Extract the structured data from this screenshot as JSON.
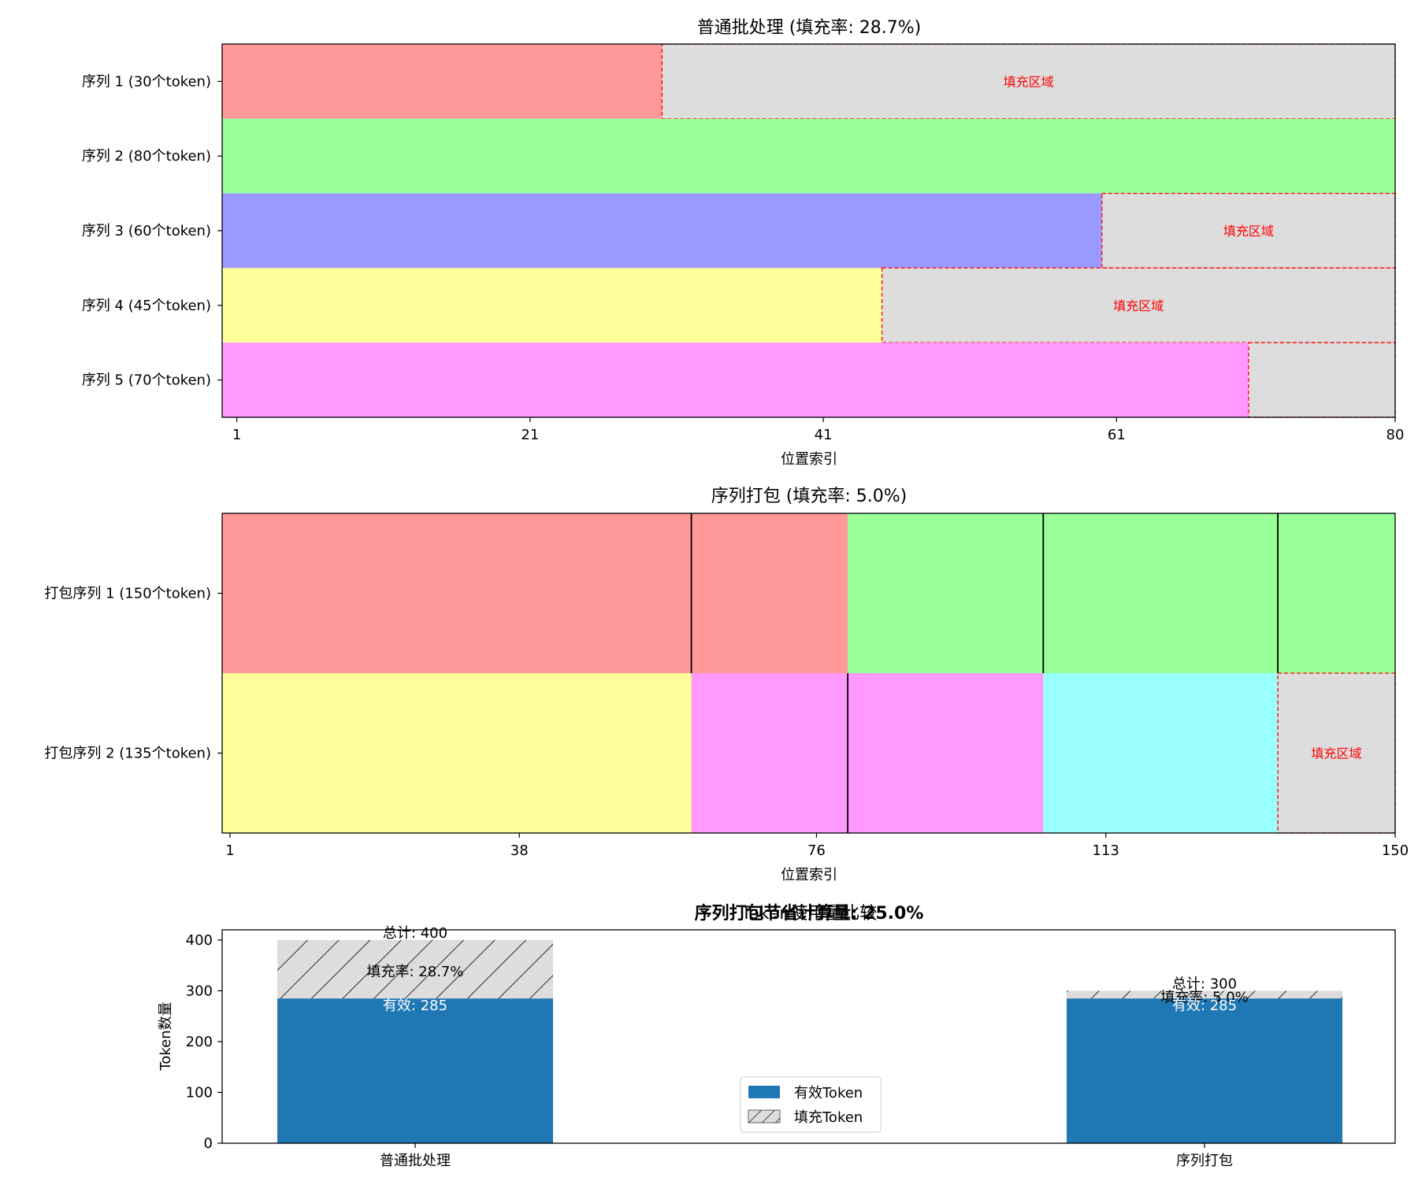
{
  "colors": {
    "seq": [
      "#ff9999",
      "#99ff99",
      "#9999ff",
      "#ffff99",
      "#ff99ff",
      "#99ffff"
    ],
    "pad_fill": "#dddddd",
    "pad_border": "#ff0000",
    "valid_bar": "#1f77b4",
    "axis": "#000000"
  },
  "chart_data": [
    {
      "type": "bar",
      "orientation": "horizontal",
      "title": "普通批处理 (填充率: 28.7%)",
      "xlabel": "位置索引",
      "ylabel": "",
      "xlim": [
        0,
        80
      ],
      "xticks": [
        "1",
        "21",
        "41",
        "61",
        "80"
      ],
      "categories": [
        "序列 1 (30个token)",
        "序列 2 (80个token)",
        "序列 3 (60个token)",
        "序列 4 (45个token)",
        "序列 5 (70个token)"
      ],
      "lengths": [
        30,
        80,
        60,
        45,
        70
      ],
      "max_length": 80,
      "padding_label": "填充区域",
      "padding_labelled_rows": [
        0,
        2,
        3
      ]
    },
    {
      "type": "bar",
      "orientation": "horizontal",
      "title": "序列打包 (填充率: 5.0%)",
      "xlabel": "位置索引",
      "ylabel": "",
      "xlim": [
        0,
        150
      ],
      "xticks": [
        "1",
        "38",
        "76",
        "113",
        "150"
      ],
      "categories": [
        "打包序列 1 (150个token)",
        "打包序列 2 (135个token)"
      ],
      "packed_rows": [
        {
          "segments": [
            {
              "seq": 1,
              "length": 60
            },
            {
              "seq": 1,
              "length": 20
            },
            {
              "seq": 2,
              "length": 25
            },
            {
              "seq": 2,
              "length": 30
            },
            {
              "seq": 2,
              "length": 15
            }
          ],
          "boundaries": [
            60,
            105,
            135
          ]
        },
        {
          "segments": [
            {
              "seq": 4,
              "length": 60
            },
            {
              "seq": 5,
              "length": 20
            },
            {
              "seq": 5,
              "length": 25
            },
            {
              "seq": 6,
              "length": 30
            }
          ],
          "boundaries": [
            80
          ],
          "padding_length": 15
        }
      ],
      "padding_label": "填充区域"
    },
    {
      "type": "bar",
      "stacked": true,
      "title": "Token使用量比较",
      "overlay_title": "序列打包节省计算量: 25.0%",
      "xlabel": "",
      "ylabel": "Token数量",
      "ylim": [
        0,
        420
      ],
      "yticks": [
        0,
        100,
        200,
        300,
        400
      ],
      "categories": [
        "普通批处理",
        "序列打包"
      ],
      "series": [
        {
          "name": "有效Token",
          "values": [
            285,
            285
          ]
        },
        {
          "name": "填充Token",
          "values": [
            115,
            15
          ]
        }
      ],
      "annotations": [
        {
          "total": "总计: 400",
          "rate": "填充率: 28.7%",
          "valid": "有效: 285"
        },
        {
          "total": "总计: 300",
          "rate": "填充率: 5.0%",
          "valid": "有效: 285"
        }
      ],
      "legend_position": "lower center"
    }
  ]
}
